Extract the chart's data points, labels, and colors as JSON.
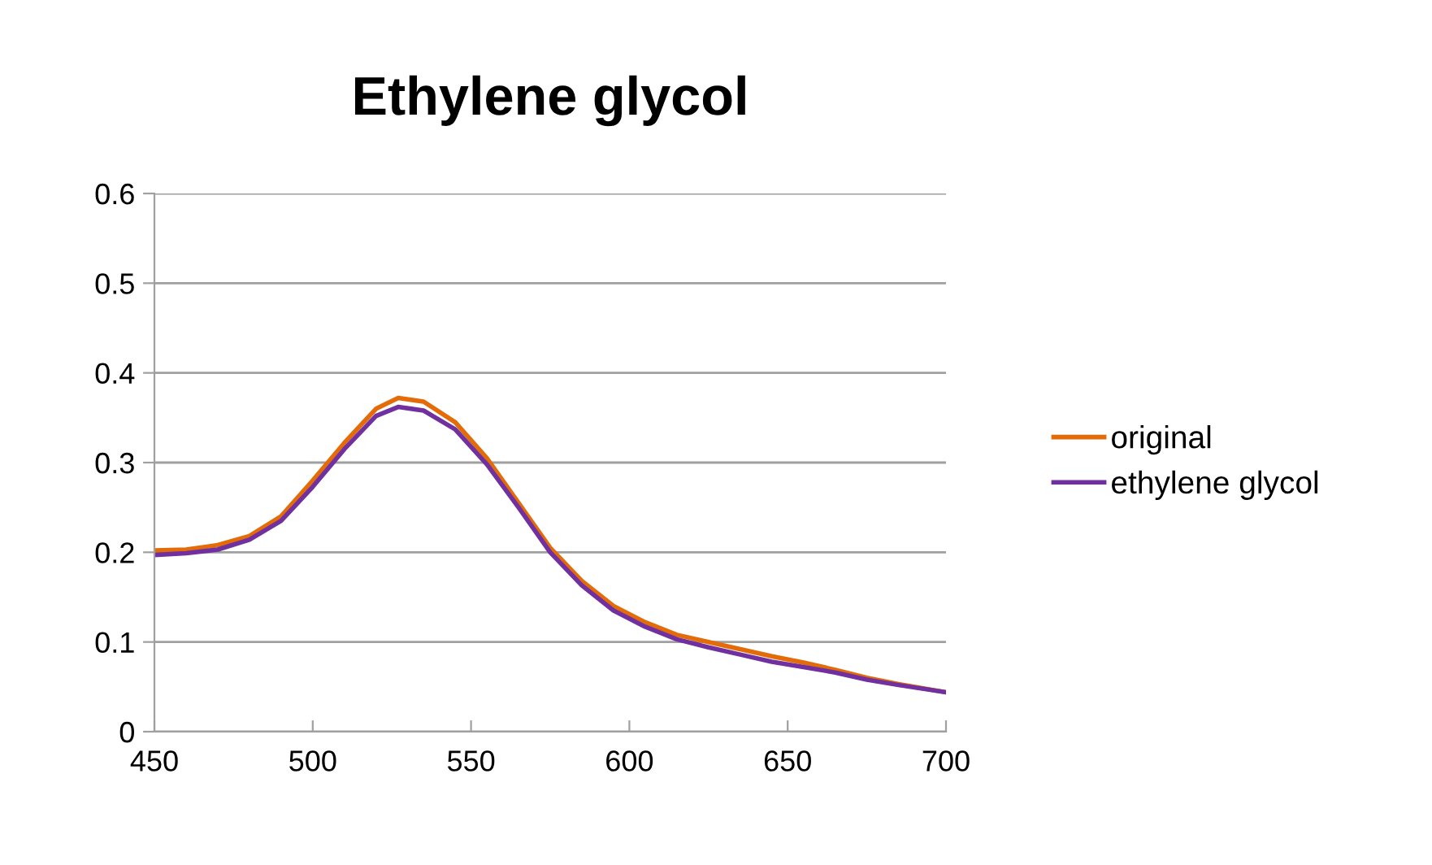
{
  "chart_data": {
    "type": "line",
    "title": "Ethylene glycol",
    "x": [
      450,
      460,
      470,
      480,
      490,
      500,
      510,
      520,
      527,
      535,
      545,
      555,
      565,
      575,
      585,
      595,
      605,
      615,
      625,
      635,
      645,
      655,
      665,
      675,
      685,
      700
    ],
    "series": [
      {
        "name": "original",
        "color": "#e36c09",
        "values": [
          0.202,
          0.203,
          0.208,
          0.218,
          0.24,
          0.28,
          0.322,
          0.36,
          0.372,
          0.368,
          0.345,
          0.305,
          0.255,
          0.205,
          0.168,
          0.14,
          0.122,
          0.108,
          0.1,
          0.092,
          0.084,
          0.077,
          0.069,
          0.06,
          0.053,
          0.044
        ]
      },
      {
        "name": "ethylene glycol",
        "color": "#7030a0",
        "values": [
          0.197,
          0.199,
          0.203,
          0.214,
          0.235,
          0.273,
          0.315,
          0.352,
          0.362,
          0.358,
          0.337,
          0.298,
          0.25,
          0.2,
          0.163,
          0.135,
          0.117,
          0.103,
          0.094,
          0.086,
          0.078,
          0.072,
          0.066,
          0.058,
          0.052,
          0.044
        ]
      }
    ],
    "xlim": [
      450,
      700
    ],
    "xticks": [
      450,
      500,
      550,
      600,
      650,
      700
    ],
    "ylim": [
      0,
      0.6
    ],
    "yticks": [
      0,
      0.1,
      0.2,
      0.3,
      0.4,
      0.5,
      0.6
    ],
    "grid": "y",
    "legend": "right"
  }
}
